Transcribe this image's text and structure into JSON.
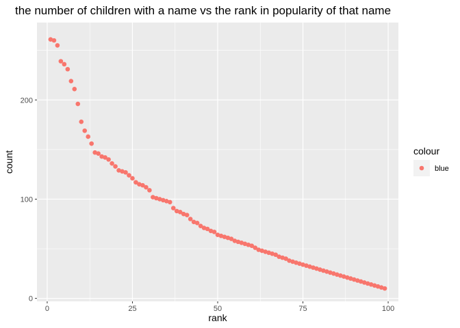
{
  "chart_data": {
    "type": "scatter",
    "title": "the number of children with a name vs the rank in popularity of that name",
    "xlabel": "rank",
    "ylabel": "count",
    "xlim": [
      -3,
      103
    ],
    "ylim": [
      -3,
      278
    ],
    "x_ticks": [
      0,
      25,
      50,
      75,
      100
    ],
    "x_tick_labels": [
      "0",
      "25",
      "50",
      "75",
      "100"
    ],
    "y_ticks": [
      0,
      100,
      200
    ],
    "y_tick_labels": [
      "0",
      "100",
      "200"
    ],
    "grid": true,
    "legend": {
      "title": "colour",
      "position": "right",
      "entries": [
        {
          "label": "blue",
          "color": "#F8766D"
        }
      ]
    },
    "point_color": "#F8766D",
    "series": [
      {
        "x": [
          1,
          2,
          3,
          4,
          5,
          6,
          7,
          8,
          9,
          10,
          11,
          12,
          13,
          14,
          15,
          16,
          17,
          18,
          19,
          20,
          21,
          22,
          23,
          24,
          25,
          26,
          27,
          28,
          29,
          30,
          31,
          32,
          33,
          34,
          35,
          36,
          37,
          38,
          39,
          40,
          41,
          42,
          43,
          44,
          45,
          46,
          47,
          48,
          49,
          50,
          51,
          52,
          53,
          54,
          55,
          56,
          57,
          58,
          59,
          60,
          61,
          62,
          63,
          64,
          65,
          66,
          67,
          68,
          69,
          70,
          71,
          72,
          73,
          74,
          75,
          76,
          77,
          78,
          79,
          80,
          81,
          82,
          83,
          84,
          85,
          86,
          87,
          88,
          89,
          90,
          91,
          92,
          93,
          94,
          95,
          96,
          97,
          98,
          99
        ],
        "y": [
          261,
          260,
          255,
          239,
          236,
          231,
          219,
          211,
          196,
          178,
          169,
          163,
          156,
          147,
          146,
          143,
          142,
          140,
          136,
          133,
          129,
          128,
          127,
          124,
          121,
          117,
          115,
          114,
          112,
          109,
          102,
          101,
          100,
          99,
          98,
          97,
          91,
          88,
          87,
          85,
          84,
          80,
          77,
          76,
          73,
          71,
          70,
          68,
          67,
          64,
          63,
          62,
          61,
          60,
          58,
          57,
          56,
          55,
          54,
          53,
          51,
          49,
          48,
          47,
          46,
          45,
          44,
          42,
          41,
          40,
          38,
          37,
          36,
          35,
          34,
          33,
          32,
          31,
          30,
          29,
          28,
          27,
          26,
          25,
          24,
          23,
          22,
          21,
          20,
          19,
          18,
          17,
          16,
          15,
          14,
          13,
          12,
          11,
          10
        ]
      }
    ]
  }
}
